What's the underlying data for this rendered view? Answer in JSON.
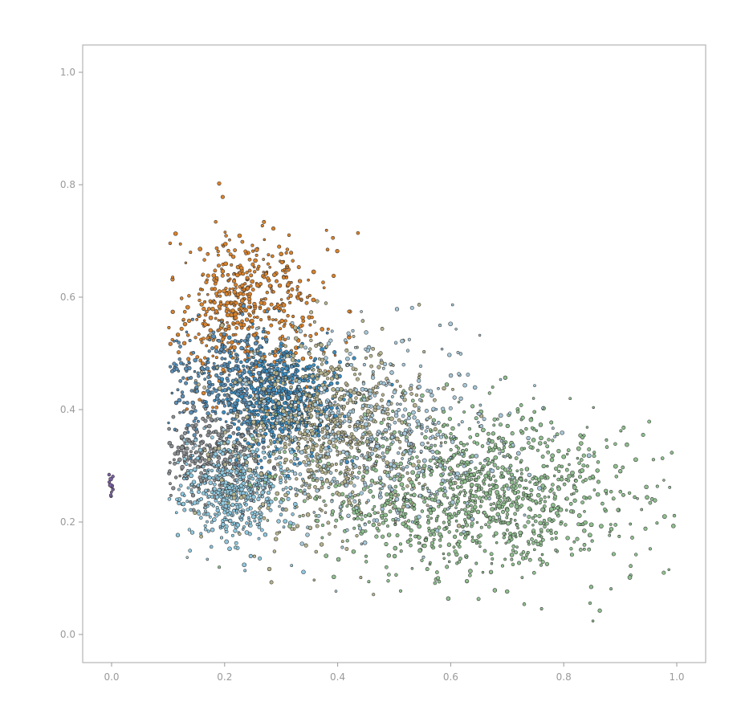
{
  "chart_data": {
    "type": "scatter",
    "title": "",
    "xlabel": "",
    "ylabel": "",
    "xlim": [
      -0.05,
      1.05
    ],
    "ylim": [
      -0.05,
      1.05
    ],
    "grid": false,
    "legend": "none",
    "x_ticks": [
      "0.0",
      "0.2",
      "0.4",
      "0.6",
      "0.8",
      "1.0"
    ],
    "y_ticks": [
      "0.0",
      "0.2",
      "0.4",
      "0.6",
      "0.8",
      "1.0"
    ],
    "clusters": [
      {
        "label": "orange",
        "color": "#d9822b",
        "center": [
          0.24,
          0.58
        ],
        "spread": [
          0.065,
          0.07
        ],
        "count": 520
      },
      {
        "label": "blue",
        "color": "#3b8fc4",
        "center": [
          0.3,
          0.42
        ],
        "spread": [
          0.05,
          0.05
        ],
        "count": 650
      },
      {
        "label": "steel-blue",
        "color": "#5b90b8",
        "center": [
          0.2,
          0.45
        ],
        "spread": [
          0.05,
          0.05
        ],
        "count": 300
      },
      {
        "label": "grey",
        "color": "#8a8f92",
        "center": [
          0.18,
          0.32
        ],
        "spread": [
          0.045,
          0.04
        ],
        "count": 280
      },
      {
        "label": "light-blue",
        "color": "#8ec8df",
        "center": [
          0.22,
          0.25
        ],
        "spread": [
          0.05,
          0.045
        ],
        "count": 480
      },
      {
        "label": "tan",
        "color": "#b5b38e",
        "center": [
          0.38,
          0.36
        ],
        "spread": [
          0.09,
          0.08
        ],
        "count": 750
      },
      {
        "label": "green",
        "color": "#8fbf8f",
        "center": [
          0.64,
          0.25
        ],
        "spread": [
          0.14,
          0.07
        ],
        "count": 1150
      },
      {
        "label": "pale-blue",
        "color": "#a6c8d8",
        "center": [
          0.48,
          0.36
        ],
        "spread": [
          0.12,
          0.08
        ],
        "count": 500
      },
      {
        "label": "purple",
        "color": "#7a5fa3",
        "center": [
          0.0,
          0.26
        ],
        "spread": [
          0.002,
          0.012
        ],
        "count": 12
      }
    ]
  }
}
